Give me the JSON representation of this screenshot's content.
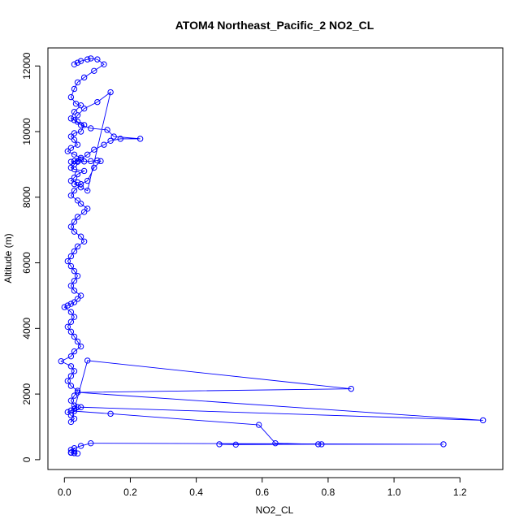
{
  "chart_data": {
    "type": "line",
    "title": "ATOM4 Northeast_Pacific_2 NO2_CL",
    "xlabel": "NO2_CL",
    "ylabel": "Altitude (m)",
    "xlim": [
      -0.05,
      1.33
    ],
    "ylim": [
      -300,
      12550
    ],
    "xticks": [
      0,
      0.2,
      0.4,
      0.6,
      0.8,
      1,
      1.2
    ],
    "xtick_labels": [
      "0.0",
      "0.2",
      "0.4",
      "0.6",
      "0.8",
      "1.0",
      "1.2"
    ],
    "yticks": [
      0,
      2000,
      4000,
      6000,
      8000,
      10000,
      12000
    ],
    "ytick_labels": [
      "0",
      "2000",
      "4000",
      "6000",
      "8000",
      "10000",
      "12000"
    ],
    "series_color": "#0000ff",
    "marker": "open-circle",
    "series": [
      {
        "x": [
          0.03,
          0.04,
          0.05,
          0.07,
          0.08,
          0.1,
          0.12,
          0.09,
          0.06,
          0.04,
          0.03,
          0.02,
          0.035,
          0.05,
          0.03,
          0.02,
          0.04,
          0.06,
          0.05,
          0.03,
          0.02,
          0.03,
          0.04,
          0.02,
          0.01,
          0.03,
          0.05,
          0.04,
          0.03,
          0.02,
          0.03,
          0.06,
          0.04,
          0.03,
          0.02,
          0.04,
          0.03,
          0.05,
          0.07,
          0.14,
          0.1,
          0.06,
          0.04,
          0.03,
          0.05,
          0.08,
          0.13,
          0.15,
          0.23,
          0.17,
          0.14,
          0.12,
          0.09,
          0.07,
          0.05,
          0.03,
          0.02,
          0.04,
          0.06,
          0.08,
          0.1,
          0.11,
          0.09,
          0.07,
          0.05,
          0.03,
          0.02,
          0.04,
          0.05,
          0.07,
          0.06,
          0.04,
          0.03,
          0.02,
          0.03,
          0.05,
          0.06,
          0.04,
          0.03,
          0.02,
          0.01,
          0.02,
          0.03,
          0.04,
          0.03,
          0.02,
          0.03,
          0.05,
          0.04,
          0.03,
          0.02,
          0.01,
          0.0,
          0.02,
          0.03,
          0.02,
          0.01,
          0.02,
          0.03,
          0.04,
          0.05,
          0.03,
          0.02,
          -0.01,
          0.02,
          0.03,
          0.02,
          0.01,
          0.02,
          0.04,
          0.03,
          0.02,
          0.03,
          0.04,
          0.03,
          0.02,
          0.01,
          0.02,
          0.03,
          0.02,
          0.07,
          0.87,
          0.04,
          1.27,
          0.05,
          0.03,
          0.14,
          0.59,
          0.64,
          0.77,
          0.52,
          0.47,
          0.78,
          1.15,
          0.08,
          0.05,
          0.03,
          0.02,
          0.03,
          0.02,
          0.03,
          0.04,
          0.03,
          0.02,
          0.03
        ],
        "y": [
          12050,
          12100,
          12150,
          12200,
          12230,
          12200,
          12050,
          11850,
          11650,
          11500,
          11300,
          11050,
          10850,
          10800,
          10600,
          10400,
          10300,
          10200,
          10000,
          9950,
          9850,
          9750,
          9600,
          9500,
          9400,
          9300,
          9200,
          9100,
          9000,
          8900,
          8850,
          8800,
          8700,
          8600,
          8500,
          8450,
          8400,
          8300,
          8200,
          11200,
          10900,
          10700,
          10500,
          10350,
          10200,
          10100,
          10050,
          9850,
          9780,
          9780,
          9720,
          9600,
          9450,
          9300,
          9150,
          9100,
          9080,
          9080,
          9090,
          9100,
          9120,
          9100,
          8900,
          8500,
          8400,
          8200,
          8050,
          7900,
          7800,
          7650,
          7550,
          7400,
          7250,
          7100,
          6950,
          6800,
          6650,
          6500,
          6350,
          6200,
          6050,
          5900,
          5750,
          5600,
          5450,
          5300,
          5150,
          5000,
          4900,
          4800,
          4750,
          4700,
          4650,
          4500,
          4350,
          4200,
          4050,
          3900,
          3750,
          3600,
          3450,
          3300,
          3150,
          3000,
          2850,
          2700,
          2550,
          2400,
          2250,
          2100,
          1950,
          1800,
          1650,
          1600,
          1550,
          1500,
          1450,
          1350,
          1250,
          1150,
          3020,
          2160,
          2050,
          1200,
          1600,
          1480,
          1400,
          1060,
          500,
          470,
          460,
          470,
          470,
          470,
          500,
          420,
          350,
          300,
          250,
          220,
          200,
          190,
          200,
          210,
          200
        ]
      }
    ]
  }
}
